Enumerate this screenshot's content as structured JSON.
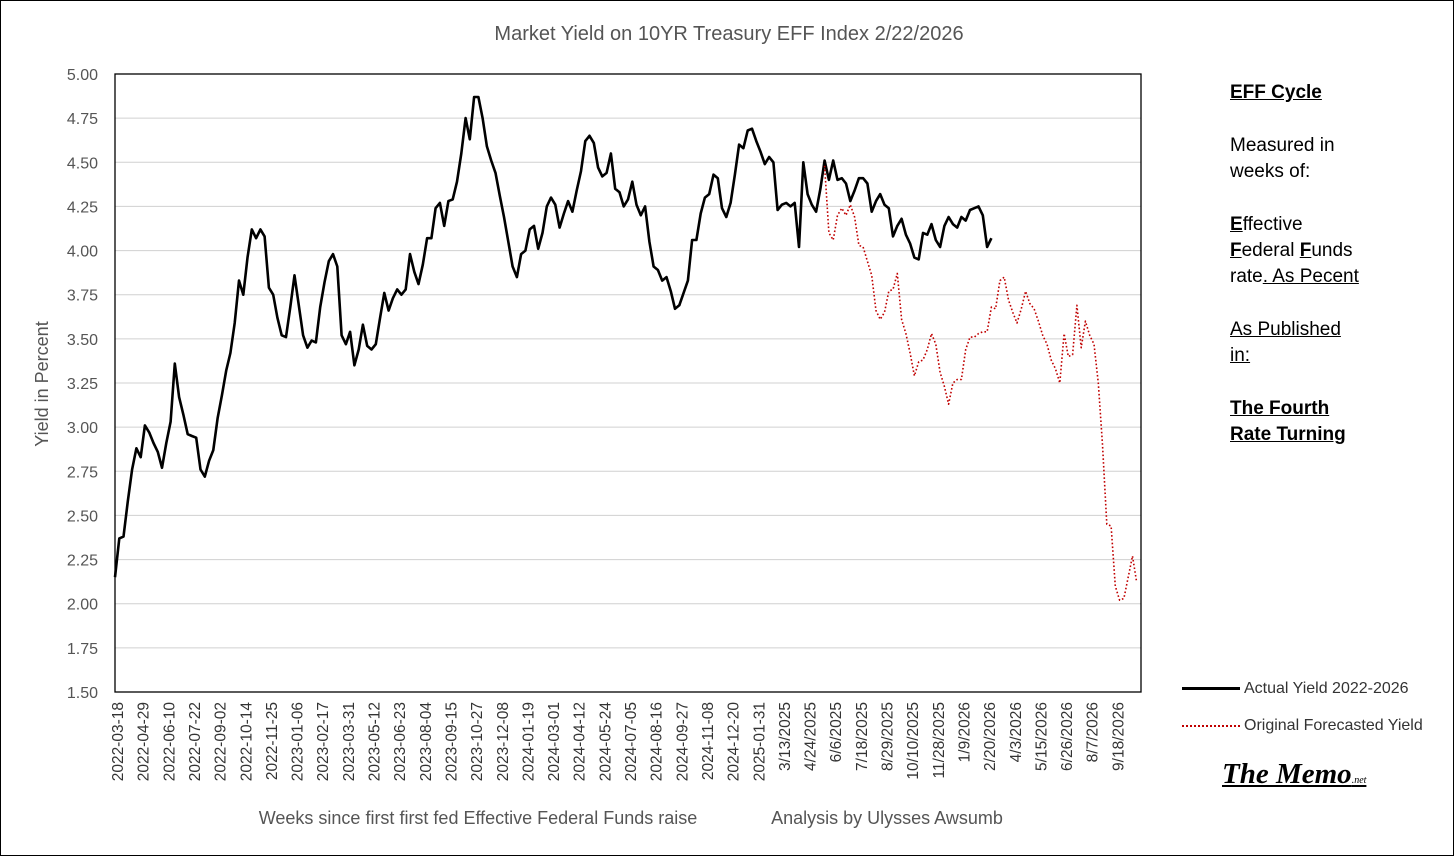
{
  "chart_data": {
    "type": "line",
    "title": "Market Yield on 10YR Treasury EFF Index 2/22/2026",
    "xlabel": "Weeks since first first fed Effective Federal Funds raise",
    "xlabel_credit": "Analysis by Ulysses Awsumb",
    "ylabel": "Yield in Percent",
    "ylim": [
      1.5,
      5.0
    ],
    "y_ticks": [
      "5.00",
      "4.75",
      "4.50",
      "4.25",
      "4.00",
      "3.75",
      "3.50",
      "3.25",
      "3.00",
      "2.75",
      "2.50",
      "2.25",
      "2.00",
      "1.75",
      "1.50"
    ],
    "x_tick_labels": [
      "2022-03-18",
      "2022-04-29",
      "2022-06-10",
      "2022-07-22",
      "2022-09-02",
      "2022-10-14",
      "2022-11-25",
      "2023-01-06",
      "2023-02-17",
      "2023-03-31",
      "2023-05-12",
      "2023-06-23",
      "2023-08-04",
      "2023-09-15",
      "2023-10-27",
      "2023-12-08",
      "2024-01-19",
      "2024-03-01",
      "2024-04-12",
      "2024-05-24",
      "2024-07-05",
      "2024-08-16",
      "2024-09-27",
      "2024-11-08",
      "2024-12-20",
      "2025-01-31",
      "3/13/2025",
      "4/24/2025",
      "6/6/2025",
      "7/18/2025",
      "8/29/2025",
      "10/10/2025",
      "11/28/2025",
      "1/9/2026",
      "2/20/2026",
      "4/3/2026",
      "5/15/2026",
      "6/26/2026",
      "8/7/2026",
      "9/18/2026"
    ],
    "x_total_weeks": 240,
    "series": [
      {
        "name": "Actual Yield 2022-2026",
        "color": "#000000",
        "style": "solid",
        "points": [
          [
            0,
            2.15
          ],
          [
            1,
            2.37
          ],
          [
            2,
            2.38
          ],
          [
            3,
            2.58
          ],
          [
            4,
            2.76
          ],
          [
            5,
            2.88
          ],
          [
            6,
            2.83
          ],
          [
            7,
            3.01
          ],
          [
            8,
            2.97
          ],
          [
            9,
            2.91
          ],
          [
            10,
            2.86
          ],
          [
            11,
            2.77
          ],
          [
            12,
            2.91
          ],
          [
            13,
            3.03
          ],
          [
            14,
            3.36
          ],
          [
            15,
            3.17
          ],
          [
            16,
            3.07
          ],
          [
            17,
            2.96
          ],
          [
            18,
            2.95
          ],
          [
            19,
            2.94
          ],
          [
            20,
            2.76
          ],
          [
            21,
            2.72
          ],
          [
            22,
            2.81
          ],
          [
            23,
            2.87
          ],
          [
            24,
            3.05
          ],
          [
            25,
            3.18
          ],
          [
            26,
            3.32
          ],
          [
            27,
            3.42
          ],
          [
            28,
            3.59
          ],
          [
            29,
            3.83
          ],
          [
            30,
            3.75
          ],
          [
            31,
            3.96
          ],
          [
            32,
            4.12
          ],
          [
            33,
            4.07
          ],
          [
            34,
            4.12
          ],
          [
            35,
            4.08
          ],
          [
            36,
            3.79
          ],
          [
            37,
            3.75
          ],
          [
            38,
            3.62
          ],
          [
            39,
            3.52
          ],
          [
            40,
            3.51
          ],
          [
            41,
            3.68
          ],
          [
            42,
            3.86
          ],
          [
            43,
            3.69
          ],
          [
            44,
            3.52
          ],
          [
            45,
            3.45
          ],
          [
            46,
            3.49
          ],
          [
            47,
            3.48
          ],
          [
            48,
            3.68
          ],
          [
            49,
            3.82
          ],
          [
            50,
            3.94
          ],
          [
            51,
            3.98
          ],
          [
            52,
            3.91
          ],
          [
            53,
            3.52
          ],
          [
            54,
            3.47
          ],
          [
            55,
            3.54
          ],
          [
            56,
            3.35
          ],
          [
            57,
            3.44
          ],
          [
            58,
            3.58
          ],
          [
            59,
            3.46
          ],
          [
            60,
            3.44
          ],
          [
            61,
            3.47
          ],
          [
            62,
            3.62
          ],
          [
            63,
            3.76
          ],
          [
            64,
            3.66
          ],
          [
            65,
            3.73
          ],
          [
            66,
            3.78
          ],
          [
            67,
            3.75
          ],
          [
            68,
            3.78
          ],
          [
            69,
            3.98
          ],
          [
            70,
            3.88
          ],
          [
            71,
            3.81
          ],
          [
            72,
            3.92
          ],
          [
            73,
            4.07
          ],
          [
            74,
            4.07
          ],
          [
            75,
            4.24
          ],
          [
            76,
            4.27
          ],
          [
            77,
            4.14
          ],
          [
            78,
            4.28
          ],
          [
            79,
            4.29
          ],
          [
            80,
            4.39
          ],
          [
            81,
            4.55
          ],
          [
            82,
            4.75
          ],
          [
            83,
            4.63
          ],
          [
            84,
            4.87
          ],
          [
            85,
            4.87
          ],
          [
            86,
            4.75
          ],
          [
            87,
            4.59
          ],
          [
            88,
            4.51
          ],
          [
            89,
            4.44
          ],
          [
            90,
            4.31
          ],
          [
            91,
            4.19
          ],
          [
            92,
            4.05
          ],
          [
            93,
            3.91
          ],
          [
            94,
            3.85
          ],
          [
            95,
            3.98
          ],
          [
            96,
            4.0
          ],
          [
            97,
            4.12
          ],
          [
            98,
            4.14
          ],
          [
            99,
            4.01
          ],
          [
            100,
            4.1
          ],
          [
            101,
            4.25
          ],
          [
            102,
            4.3
          ],
          [
            103,
            4.26
          ],
          [
            104,
            4.13
          ],
          [
            105,
            4.21
          ],
          [
            106,
            4.28
          ],
          [
            107,
            4.22
          ],
          [
            108,
            4.34
          ],
          [
            109,
            4.45
          ],
          [
            110,
            4.62
          ],
          [
            111,
            4.65
          ],
          [
            112,
            4.61
          ],
          [
            113,
            4.47
          ],
          [
            114,
            4.42
          ],
          [
            115,
            4.44
          ],
          [
            116,
            4.55
          ],
          [
            117,
            4.35
          ],
          [
            118,
            4.33
          ],
          [
            119,
            4.25
          ],
          [
            120,
            4.29
          ],
          [
            121,
            4.39
          ],
          [
            122,
            4.26
          ],
          [
            123,
            4.2
          ],
          [
            124,
            4.25
          ],
          [
            125,
            4.05
          ],
          [
            126,
            3.91
          ],
          [
            127,
            3.89
          ],
          [
            128,
            3.83
          ],
          [
            129,
            3.85
          ],
          [
            130,
            3.77
          ],
          [
            131,
            3.67
          ],
          [
            132,
            3.69
          ],
          [
            133,
            3.76
          ],
          [
            134,
            3.83
          ],
          [
            135,
            4.06
          ],
          [
            136,
            4.06
          ],
          [
            137,
            4.21
          ],
          [
            138,
            4.3
          ],
          [
            139,
            4.32
          ],
          [
            140,
            4.43
          ],
          [
            141,
            4.41
          ],
          [
            142,
            4.24
          ],
          [
            143,
            4.19
          ],
          [
            144,
            4.27
          ],
          [
            145,
            4.43
          ],
          [
            146,
            4.6
          ],
          [
            147,
            4.58
          ],
          [
            148,
            4.68
          ],
          [
            149,
            4.69
          ],
          [
            150,
            4.62
          ],
          [
            151,
            4.56
          ],
          [
            152,
            4.49
          ],
          [
            153,
            4.53
          ],
          [
            154,
            4.5
          ],
          [
            155,
            4.23
          ],
          [
            156,
            4.26
          ],
          [
            157,
            4.27
          ],
          [
            158,
            4.25
          ],
          [
            159,
            4.27
          ],
          [
            160,
            4.02
          ],
          [
            161,
            4.5
          ],
          [
            162,
            4.32
          ],
          [
            163,
            4.26
          ],
          [
            164,
            4.22
          ],
          [
            165,
            4.35
          ],
          [
            166,
            4.51
          ],
          [
            167,
            4.4
          ],
          [
            168,
            4.51
          ],
          [
            169,
            4.4
          ],
          [
            170,
            4.41
          ],
          [
            171,
            4.38
          ],
          [
            172,
            4.28
          ],
          [
            173,
            4.34
          ],
          [
            174,
            4.41
          ],
          [
            175,
            4.41
          ],
          [
            176,
            4.38
          ],
          [
            177,
            4.22
          ],
          [
            178,
            4.28
          ],
          [
            179,
            4.32
          ],
          [
            180,
            4.26
          ],
          [
            181,
            4.24
          ],
          [
            182,
            4.08
          ],
          [
            183,
            4.14
          ],
          [
            184,
            4.18
          ],
          [
            185,
            4.09
          ],
          [
            186,
            4.04
          ],
          [
            187,
            3.96
          ],
          [
            188,
            3.95
          ],
          [
            189,
            4.1
          ],
          [
            190,
            4.09
          ],
          [
            191,
            4.15
          ],
          [
            192,
            4.06
          ],
          [
            193,
            4.02
          ],
          [
            194,
            4.14
          ],
          [
            195,
            4.19
          ],
          [
            196,
            4.15
          ],
          [
            197,
            4.13
          ],
          [
            198,
            4.19
          ],
          [
            199,
            4.17
          ],
          [
            200,
            4.23
          ],
          [
            201,
            4.24
          ],
          [
            202,
            4.25
          ],
          [
            203,
            4.2
          ],
          [
            204,
            4.02
          ],
          [
            205,
            4.07
          ]
        ]
      },
      {
        "name": "Original Forecasted Yield",
        "color": "#c00000",
        "style": "dotted",
        "points": [
          [
            166,
            4.48
          ],
          [
            167,
            4.1
          ],
          [
            168,
            4.06
          ],
          [
            169,
            4.2
          ],
          [
            170,
            4.24
          ],
          [
            171,
            4.2
          ],
          [
            172,
            4.26
          ],
          [
            173,
            4.19
          ],
          [
            174,
            4.03
          ],
          [
            175,
            4.02
          ],
          [
            176,
            3.94
          ],
          [
            177,
            3.86
          ],
          [
            178,
            3.66
          ],
          [
            179,
            3.61
          ],
          [
            180,
            3.65
          ],
          [
            181,
            3.77
          ],
          [
            182,
            3.78
          ],
          [
            183,
            3.87
          ],
          [
            184,
            3.61
          ],
          [
            185,
            3.53
          ],
          [
            186,
            3.42
          ],
          [
            187,
            3.29
          ],
          [
            188,
            3.37
          ],
          [
            189,
            3.38
          ],
          [
            190,
            3.44
          ],
          [
            191,
            3.53
          ],
          [
            192,
            3.47
          ],
          [
            193,
            3.31
          ],
          [
            194,
            3.23
          ],
          [
            195,
            3.13
          ],
          [
            196,
            3.25
          ],
          [
            197,
            3.27
          ],
          [
            198,
            3.27
          ],
          [
            199,
            3.44
          ],
          [
            200,
            3.51
          ],
          [
            201,
            3.51
          ],
          [
            202,
            3.53
          ],
          [
            203,
            3.54
          ],
          [
            204,
            3.54
          ],
          [
            205,
            3.68
          ],
          [
            206,
            3.67
          ],
          [
            207,
            3.83
          ],
          [
            208,
            3.85
          ],
          [
            209,
            3.72
          ],
          [
            210,
            3.65
          ],
          [
            211,
            3.59
          ],
          [
            212,
            3.67
          ],
          [
            213,
            3.77
          ],
          [
            214,
            3.7
          ],
          [
            215,
            3.67
          ],
          [
            216,
            3.6
          ],
          [
            217,
            3.52
          ],
          [
            218,
            3.47
          ],
          [
            219,
            3.38
          ],
          [
            220,
            3.33
          ],
          [
            221,
            3.25
          ],
          [
            222,
            3.53
          ],
          [
            223,
            3.4
          ],
          [
            224,
            3.41
          ],
          [
            225,
            3.69
          ],
          [
            226,
            3.45
          ],
          [
            227,
            3.6
          ],
          [
            228,
            3.52
          ],
          [
            229,
            3.47
          ],
          [
            230,
            3.25
          ],
          [
            231,
            2.9
          ],
          [
            232,
            2.45
          ],
          [
            233,
            2.44
          ],
          [
            234,
            2.1
          ],
          [
            235,
            2.02
          ],
          [
            236,
            2.03
          ],
          [
            237,
            2.15
          ],
          [
            238,
            2.27
          ],
          [
            239,
            2.12
          ]
        ]
      }
    ]
  },
  "sidebar": {
    "title": "EFF Cycle",
    "measured_line1": "Measured in",
    "measured_line2": "weeks of:",
    "eff_E": "E",
    "eff_E_rest": "ffective",
    "eff_F1": "F",
    "eff_F1_rest": "ederal ",
    "eff_F2": "F",
    "eff_F2_rest": "unds",
    "eff_line3_a": "rate",
    "eff_line3_b": ". As Pecent",
    "published_line1": "As Published",
    "published_line2": "in:",
    "book_line1": "The Fourth",
    "book_line2": "Rate Turning"
  },
  "legend": {
    "actual": "Actual Yield 2022-2026",
    "forecast": "Original Forecasted Yield"
  },
  "brand": {
    "name": "The Memo",
    "suffix": ".net"
  }
}
